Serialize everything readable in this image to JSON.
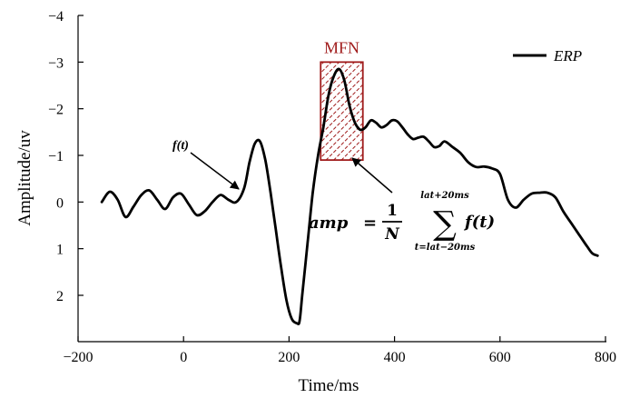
{
  "chart_data": {
    "type": "line",
    "xlabel": "Time/ms",
    "ylabel": "Amplitude/uv",
    "xlim": [
      -200,
      800
    ],
    "ylim": [
      -4,
      3
    ],
    "y_inverted": true,
    "x_ticks": [
      -200,
      0,
      200,
      400,
      600,
      800
    ],
    "y_ticks": [
      -4,
      -3,
      -2,
      -1,
      0,
      1,
      2
    ],
    "x_tick_labels": [
      "−200",
      "0",
      "200",
      "400",
      "600",
      "800"
    ],
    "y_tick_labels": [
      "−4",
      "−3",
      "−2",
      "−1",
      "0",
      "1",
      "2"
    ],
    "grid": false,
    "legend_position": "top-right",
    "series": [
      {
        "name": "ERP",
        "color": "#000000",
        "x": [
          -155,
          -140,
          -125,
          -110,
          -95,
          -80,
          -65,
          -50,
          -35,
          -20,
          -5,
          10,
          25,
          40,
          55,
          70,
          85,
          100,
          115,
          125,
          135,
          145,
          155,
          165,
          175,
          185,
          195,
          205,
          215,
          220,
          225,
          235,
          245,
          255,
          265,
          275,
          285,
          295,
          305,
          315,
          325,
          335,
          345,
          355,
          365,
          375,
          385,
          395,
          405,
          415,
          425,
          435,
          445,
          455,
          465,
          475,
          485,
          495,
          510,
          525,
          540,
          555,
          570,
          585,
          600,
          615,
          630,
          645,
          660,
          675,
          690,
          705,
          720,
          735,
          750,
          765,
          775,
          785
        ],
        "y": [
          0.0,
          -0.22,
          -0.05,
          0.32,
          0.1,
          -0.15,
          -0.25,
          -0.05,
          0.15,
          -0.1,
          -0.18,
          0.05,
          0.28,
          0.2,
          0.0,
          -0.15,
          -0.05,
          0.0,
          -0.3,
          -0.85,
          -1.25,
          -1.3,
          -0.9,
          -0.2,
          0.6,
          1.4,
          2.1,
          2.5,
          2.6,
          2.55,
          2.0,
          0.9,
          -0.2,
          -1.0,
          -1.6,
          -2.3,
          -2.7,
          -2.85,
          -2.6,
          -2.05,
          -1.7,
          -1.55,
          -1.6,
          -1.75,
          -1.7,
          -1.6,
          -1.65,
          -1.75,
          -1.73,
          -1.6,
          -1.45,
          -1.35,
          -1.38,
          -1.4,
          -1.3,
          -1.18,
          -1.2,
          -1.3,
          -1.18,
          -1.05,
          -0.85,
          -0.75,
          -0.76,
          -0.72,
          -0.6,
          -0.05,
          0.12,
          -0.05,
          -0.18,
          -0.2,
          -0.2,
          -0.1,
          0.2,
          0.45,
          0.7,
          0.95,
          1.1,
          1.15
        ]
      }
    ],
    "annotations": {
      "box_label": "MFN",
      "box_x": [
        260,
        340
      ],
      "box_y": [
        -3.0,
        -0.9
      ],
      "box_color": "#a01c1c",
      "arrow_label": "f(t)",
      "formula": {
        "lhs": "amp",
        "equals": "=",
        "numerator": "1",
        "denominator": "N",
        "sigma": "∑",
        "upper_limit": "lat+20ms",
        "lower_limit": "t=lat−20ms",
        "summand": "f(t)"
      }
    }
  }
}
